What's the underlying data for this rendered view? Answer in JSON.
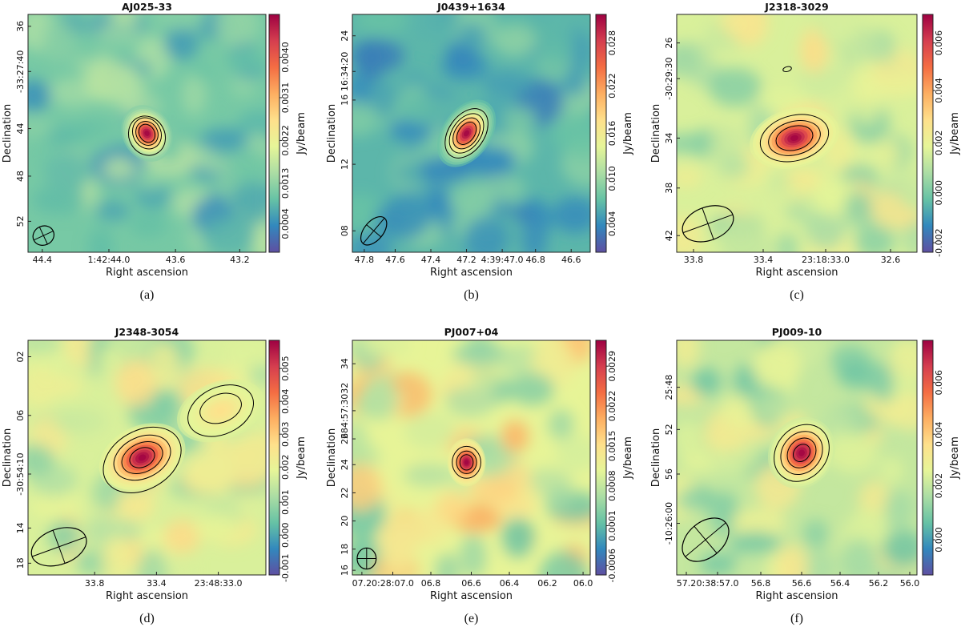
{
  "figure": {
    "colors": {
      "colormap": [
        "#5e4fa2",
        "#3288bd",
        "#66c2a5",
        "#abdda4",
        "#e6f598",
        "#fee08b",
        "#fdae61",
        "#f46d43",
        "#d53e4f",
        "#9e0142"
      ],
      "contour": "#000000"
    },
    "chart_data": [
      {
        "type": "heatmap",
        "title": "AJ025-33",
        "caption": "(a)",
        "xlabel": "Right ascension",
        "ylabel": "Declination",
        "xticks": [
          "44.4",
          "1:42:44.0",
          "43.6",
          "43.2"
        ],
        "yticks": [
          "36",
          "-33:27:40",
          "44",
          "48",
          "52"
        ],
        "colorbar_label": "Jy/beam",
        "colorbar_ticks": [
          "0.0004",
          "0.0013",
          "0.0022",
          "0.0031",
          "0.0040"
        ]
      },
      {
        "type": "heatmap",
        "title": "J0439+1634",
        "caption": "(b)",
        "xlabel": "Right ascension",
        "ylabel": "Declination",
        "xticks": [
          "47.8",
          "47.6",
          "47.4",
          "47.2",
          "4:39:47.0",
          "46.8",
          "46.6"
        ],
        "yticks": [
          "08",
          "12",
          "16",
          "16:34:20",
          "24"
        ],
        "colorbar_label": "Jy/beam",
        "colorbar_ticks": [
          "0.004",
          "0.010",
          "0.016",
          "0.022",
          "0.028"
        ]
      },
      {
        "type": "heatmap",
        "title": "J2318-3029",
        "caption": "(c)",
        "xlabel": "Right ascension",
        "ylabel": "Declination",
        "xticks": [
          "33.8",
          "33.4",
          "23:18:33.0",
          "32.6"
        ],
        "yticks": [
          "26",
          "-30:29:30",
          "34",
          "38",
          "42"
        ],
        "colorbar_label": "Jy/beam",
        "colorbar_ticks": [
          "-0.002",
          "0.000",
          "0.002",
          "0.004",
          "0.006"
        ]
      },
      {
        "type": "heatmap",
        "title": "J2348-3054",
        "caption": "(d)",
        "xlabel": "Right ascension",
        "ylabel": "Declination",
        "xticks": [
          "33.8",
          "33.4",
          "23:48:33.0"
        ],
        "yticks": [
          "02",
          "06",
          "-30:54:10",
          "14",
          "18"
        ],
        "colorbar_label": "Jy/beam",
        "colorbar_ticks": [
          "-0.001",
          "0.000",
          "0.001",
          "0.002",
          "0.003",
          "0.004",
          "0.005"
        ]
      },
      {
        "type": "heatmap",
        "title": "PJ007+04",
        "caption": "(e)",
        "xlabel": "Right ascension",
        "ylabel": "Declination",
        "xticks": [
          "07.2",
          "0:28:07.0",
          "06.8",
          "06.6",
          "06.4",
          "06.2",
          "06.0"
        ],
        "yticks": [
          "16",
          "18",
          "20",
          "22",
          "24",
          "26",
          "284:57:3032",
          "34"
        ],
        "colorbar_label": "Jy/beam",
        "colorbar_ticks": [
          "-0.0006",
          "0.0001",
          "0.0008",
          "0.0015",
          "0.0022",
          "0.0029"
        ]
      },
      {
        "type": "heatmap",
        "title": "PJ009-10",
        "caption": "(f)",
        "xlabel": "Right ascension",
        "ylabel": "Declination",
        "xticks": [
          "57.2",
          "0:38:57.0",
          "56.8",
          "56.6",
          "56.4",
          "56.2",
          "56.0"
        ],
        "yticks": [
          "25:48",
          "52",
          "56",
          "-10:26:00"
        ],
        "colorbar_label": "Jy/beam",
        "colorbar_ticks": [
          "0.000",
          "0.002",
          "0.004",
          "0.006"
        ]
      }
    ]
  }
}
